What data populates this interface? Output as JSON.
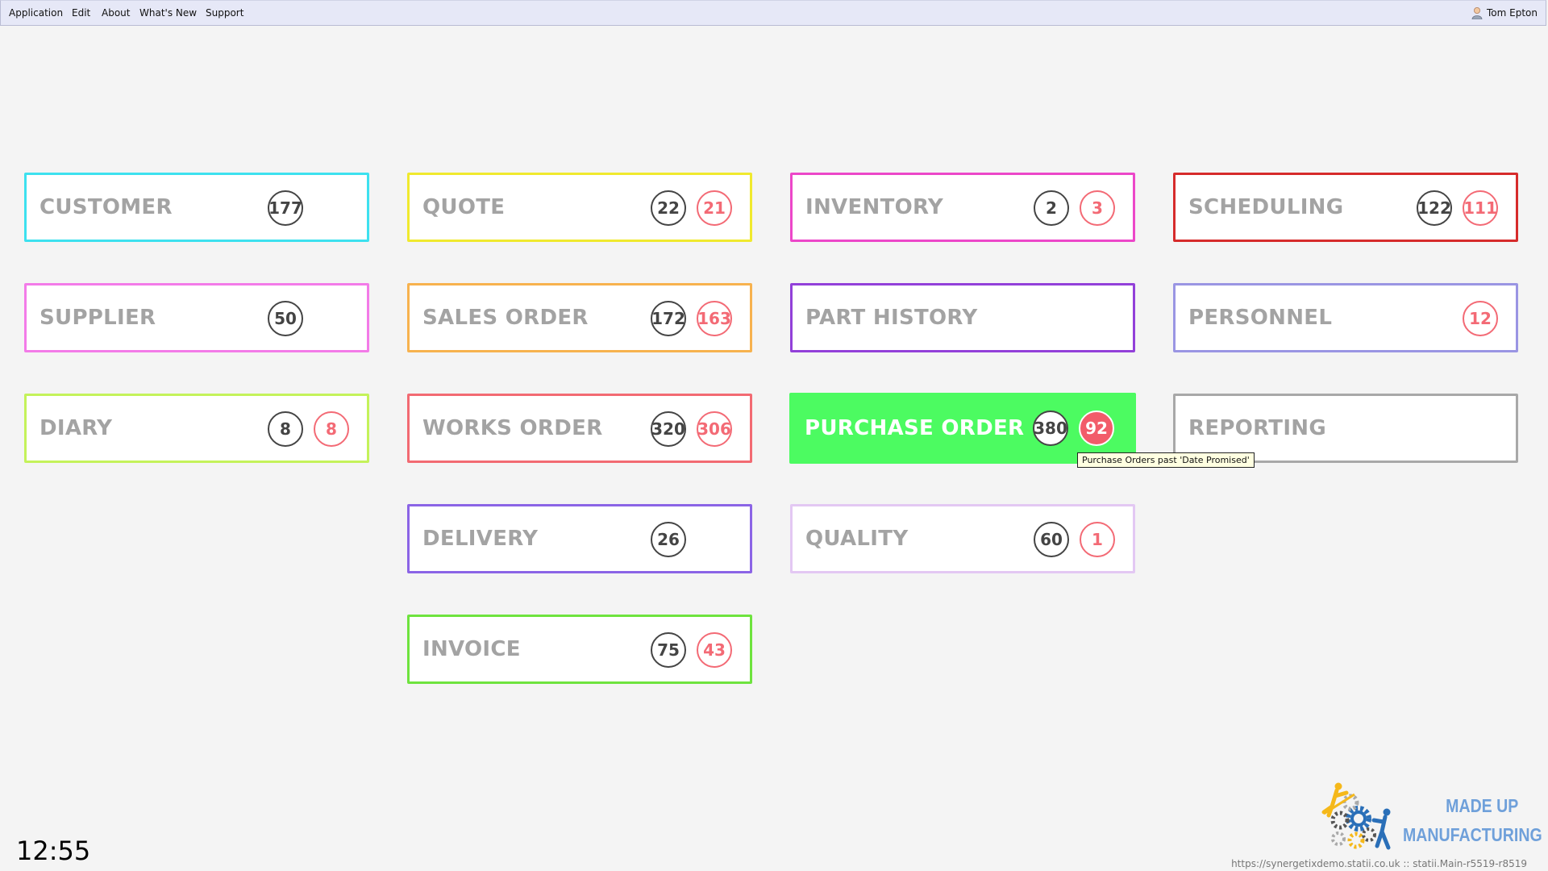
{
  "menubar": {
    "items": [
      {
        "label": "Application"
      },
      {
        "label": "Edit"
      },
      {
        "label": "About"
      },
      {
        "label": "What's New"
      },
      {
        "label": "Support"
      }
    ],
    "user": {
      "name": "Tom Epton",
      "icon": "user-icon"
    }
  },
  "tiles": [
    {
      "label": "CUSTOMER",
      "color": "#3de1ef",
      "total": "177",
      "alert": null
    },
    {
      "label": "SUPPLIER",
      "color": "#f37be8",
      "total": "50",
      "alert": null
    },
    {
      "label": "DIARY",
      "color": "#c4f25a",
      "total": "8",
      "alert": "8"
    },
    {
      "label": "QUOTE",
      "color": "#f0e92e",
      "total": "22",
      "alert": "21"
    },
    {
      "label": "SALES ORDER",
      "color": "#f7b24e",
      "total": "172",
      "alert": "163"
    },
    {
      "label": "WORKS ORDER",
      "color": "#f26a72",
      "total": "320",
      "alert": "306"
    },
    {
      "label": "DELIVERY",
      "color": "#8b64e6",
      "total": "26",
      "alert": null
    },
    {
      "label": "INVOICE",
      "color": "#6ee33e",
      "total": "75",
      "alert": "43"
    },
    {
      "label": "INVENTORY",
      "color": "#ec47c9",
      "total": "2",
      "alert": "3"
    },
    {
      "label": "PART HISTORY",
      "color": "#9240d9",
      "total": null,
      "alert": null
    },
    {
      "label": "PURCHASE ORDER",
      "color": "#4cfb61",
      "total": "380",
      "alert": "92",
      "highlighted": true
    },
    {
      "label": "QUALITY",
      "color": "#e3c8f3",
      "total": "60",
      "alert": "1"
    },
    {
      "label": "SCHEDULING",
      "color": "#d62b2b",
      "total": "122",
      "alert": "111"
    },
    {
      "label": "PERSONNEL",
      "color": "#9a95e3",
      "total": null,
      "alert": "12"
    },
    {
      "label": "REPORTING",
      "color": "#a8a8a8",
      "total": null,
      "alert": null
    }
  ],
  "tooltip": {
    "text": "Purchase Orders past 'Date Promised'"
  },
  "clock": {
    "time": "12:55"
  },
  "logo": {
    "line1": "MADE UP",
    "line2": "MANUFACTURING"
  },
  "footer": {
    "url": "https://synergetixdemo.statii.co.uk :: statii.Main-r5519-r8519"
  }
}
